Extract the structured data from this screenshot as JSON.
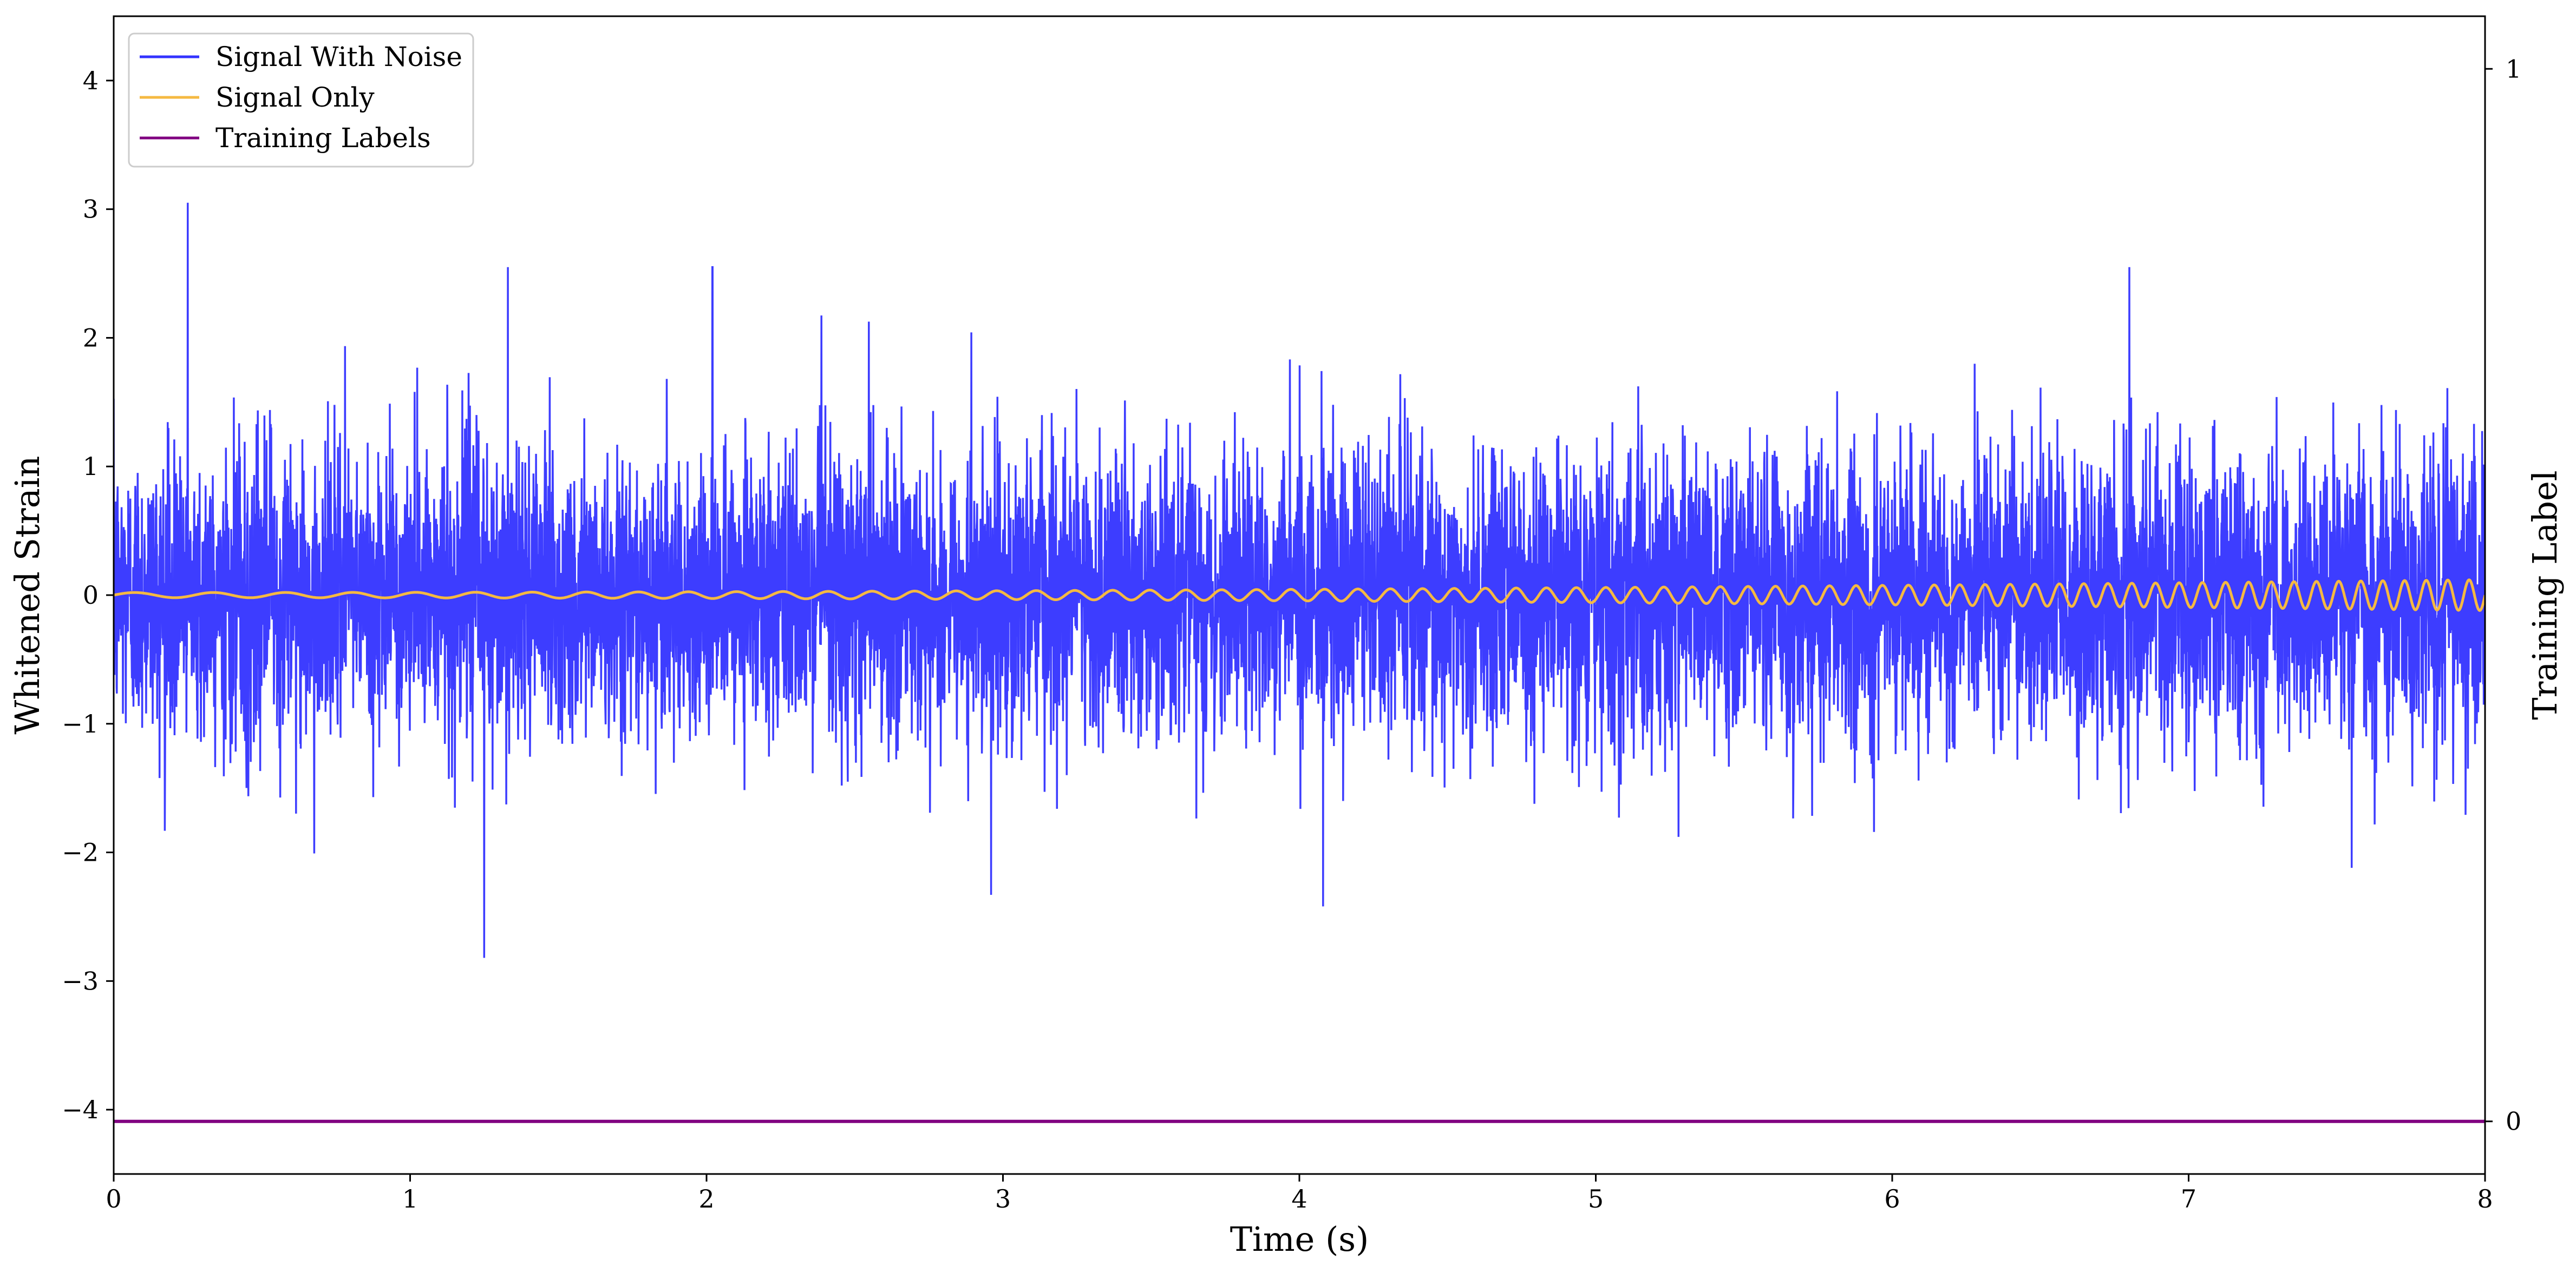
{
  "chart_data": {
    "type": "line",
    "title": "",
    "xlabel": "Time (s)",
    "ylabel": "Whitened Strain",
    "y2label": "Training Label",
    "xlim": [
      0,
      8
    ],
    "ylim": [
      -4.5,
      4.5
    ],
    "y2lim": [
      -0.05,
      1.05
    ],
    "xticks": [
      0,
      1,
      2,
      3,
      4,
      5,
      6,
      7,
      8
    ],
    "yticks": [
      -4,
      -3,
      -2,
      -1,
      0,
      1,
      2,
      3,
      4
    ],
    "y2ticks": [
      0,
      1
    ],
    "grid": false,
    "legend_position": "top-left",
    "series": [
      {
        "name": "Signal With Noise",
        "axis": "left",
        "color": "#3333ff",
        "description_values": {
          "noise_std": 0.55,
          "notable_peaks": [
            {
              "x": 0.25,
              "y": 3.05
            },
            {
              "x": 1.25,
              "y": -2.82
            },
            {
              "x": 4.08,
              "y": -2.42
            },
            {
              "x": 2.96,
              "y": -2.33
            },
            {
              "x": 1.33,
              "y": 2.55
            },
            {
              "x": 2.02,
              "y": 2.55
            },
            {
              "x": 6.8,
              "y": 2.55
            },
            {
              "x": 7.55,
              "y": -2.12
            }
          ]
        }
      },
      {
        "name": "Signal Only",
        "axis": "left",
        "color": "#f5b942",
        "chirp": {
          "amplitude_start": 0.02,
          "amplitude_end": 0.12,
          "freq_start_hz": 3.5,
          "freq_end_hz": 14
        }
      },
      {
        "name": "Training Labels",
        "axis": "right",
        "color": "#800080",
        "x": [
          0,
          8
        ],
        "y": [
          0,
          0
        ]
      }
    ]
  }
}
